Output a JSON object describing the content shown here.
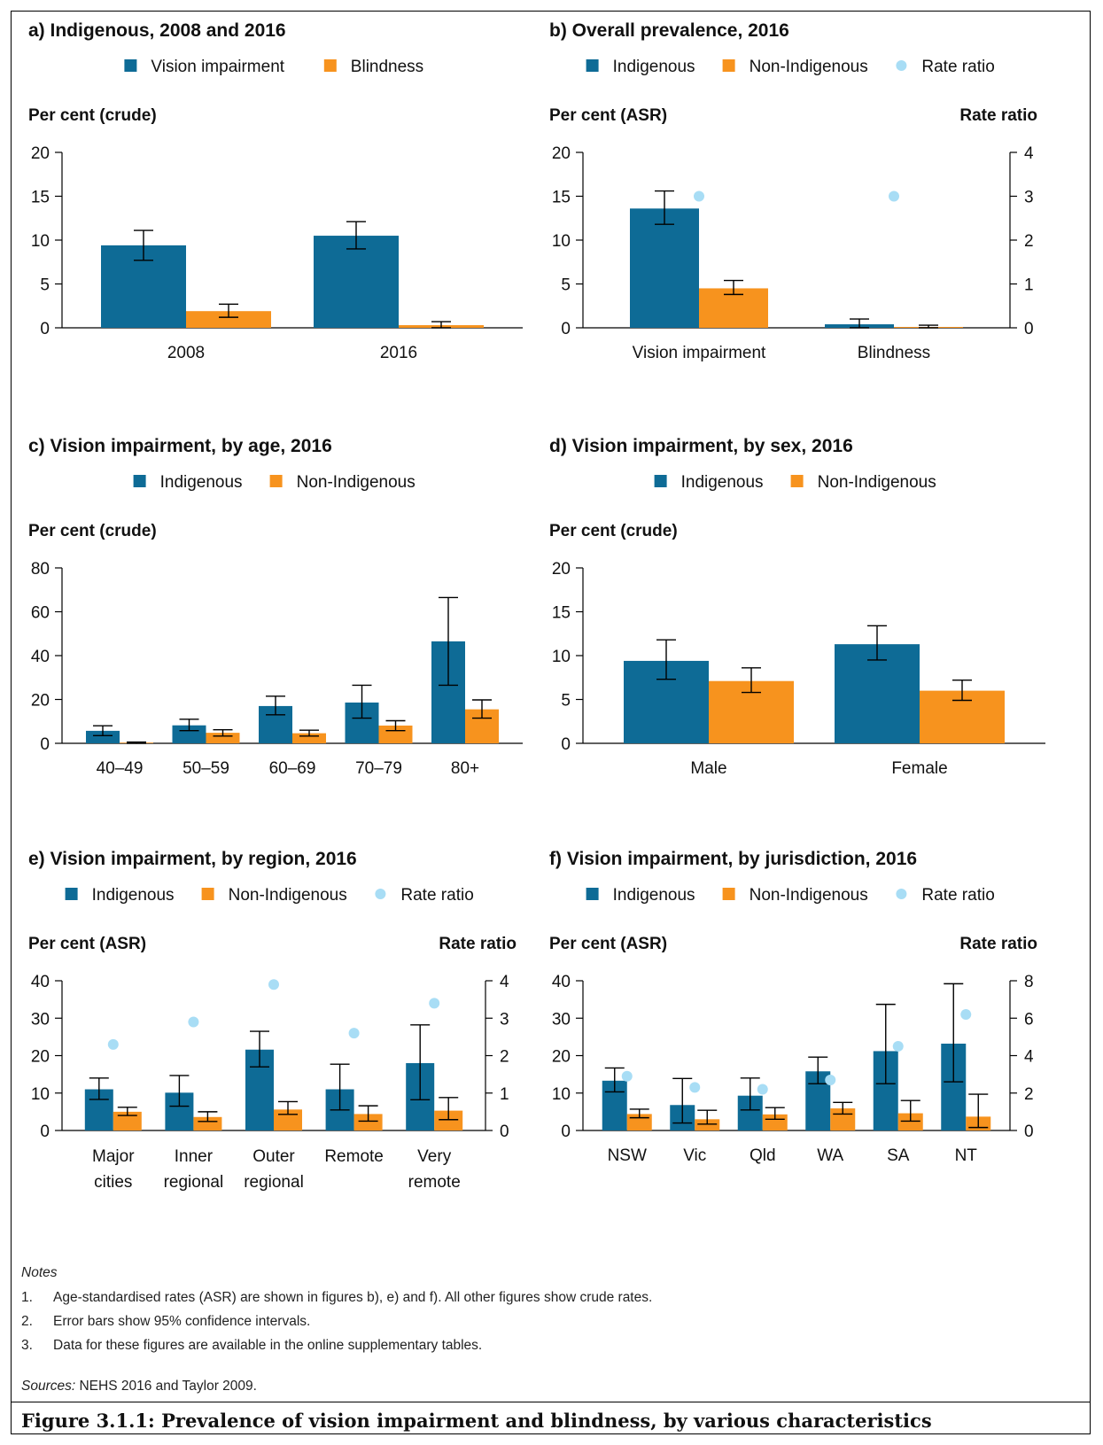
{
  "colors": {
    "indigenous": "#0e6b96",
    "orange": "#f7931e",
    "ratio": "#a8ddf5"
  },
  "chart_data": [
    {
      "id": "a",
      "type": "bar",
      "title": "a) Indigenous, 2008 and 2016",
      "ylabel": "Per cent (crude)",
      "categories": [
        "2008",
        "2016"
      ],
      "ylim": [
        0,
        20
      ],
      "yticks": [
        0,
        5,
        10,
        15,
        20
      ],
      "series": [
        {
          "name": "Vision impairment",
          "color": "#0e6b96",
          "values": [
            9.4,
            10.5
          ],
          "err_low": [
            7.7,
            9.0
          ],
          "err_high": [
            11.1,
            12.1
          ]
        },
        {
          "name": "Blindness",
          "color": "#f7931e",
          "values": [
            1.9,
            0.3
          ],
          "err_low": [
            1.2,
            0.0
          ],
          "err_high": [
            2.7,
            0.7
          ]
        }
      ]
    },
    {
      "id": "b",
      "type": "bar",
      "title": "b) Overall prevalence, 2016",
      "ylabel": "Per cent (ASR)",
      "y2label": "Rate ratio",
      "categories": [
        "Vision impairment",
        "Blindness"
      ],
      "ylim": [
        0,
        20
      ],
      "yticks": [
        0,
        5,
        10,
        15,
        20
      ],
      "y2lim": [
        0,
        4
      ],
      "y2ticks": [
        0,
        1,
        2,
        3,
        4
      ],
      "series": [
        {
          "name": "Indigenous",
          "color": "#0e6b96",
          "values": [
            13.6,
            0.4
          ],
          "err_low": [
            11.8,
            0.0
          ],
          "err_high": [
            15.6,
            1.0
          ]
        },
        {
          "name": "Non-Indigenous",
          "color": "#f7931e",
          "values": [
            4.5,
            0.1
          ],
          "err_low": [
            3.8,
            0.0
          ],
          "err_high": [
            5.4,
            0.3
          ]
        }
      ],
      "rate_ratio": {
        "name": "Rate ratio",
        "color": "#a8ddf5",
        "values": [
          3.0,
          3.0
        ]
      }
    },
    {
      "id": "c",
      "type": "bar",
      "title": "c) Vision impairment, by age, 2016",
      "ylabel": "Per cent (crude)",
      "categories": [
        "40–49",
        "50–59",
        "60–69",
        "70–79",
        "80+"
      ],
      "ylim": [
        0,
        80
      ],
      "yticks": [
        0,
        20,
        40,
        60,
        80
      ],
      "series": [
        {
          "name": "Indigenous",
          "color": "#0e6b96",
          "values": [
            5.7,
            8.2,
            17.0,
            18.6,
            46.5
          ],
          "err_low": [
            3.5,
            5.8,
            13.0,
            11.5,
            26.5
          ],
          "err_high": [
            8.0,
            11.0,
            21.5,
            26.5,
            66.5
          ]
        },
        {
          "name": "Non-Indigenous",
          "color": "#f7931e",
          "values": [
            0.3,
            4.8,
            4.6,
            8.1,
            15.5
          ],
          "err_low": [
            0.0,
            3.3,
            3.3,
            5.8,
            11.5
          ],
          "err_high": [
            0.6,
            6.2,
            6.0,
            10.3,
            19.8
          ]
        }
      ]
    },
    {
      "id": "d",
      "type": "bar",
      "title": "d) Vision impairment, by sex, 2016",
      "ylabel": "Per cent (crude)",
      "categories": [
        "Male",
        "Female"
      ],
      "ylim": [
        0,
        20
      ],
      "yticks": [
        0,
        5,
        10,
        15,
        20
      ],
      "series": [
        {
          "name": "Indigenous",
          "color": "#0e6b96",
          "values": [
            9.4,
            11.3
          ],
          "err_low": [
            7.3,
            9.5
          ],
          "err_high": [
            11.8,
            13.4
          ]
        },
        {
          "name": "Non-Indigenous",
          "color": "#f7931e",
          "values": [
            7.1,
            6.0
          ],
          "err_low": [
            5.8,
            4.9
          ],
          "err_high": [
            8.6,
            7.2
          ]
        }
      ]
    },
    {
      "id": "e",
      "type": "bar",
      "title": "e) Vision impairment, by region, 2016",
      "ylabel": "Per cent (ASR)",
      "y2label": "Rate ratio",
      "categories": [
        "Major cities",
        "Inner regional",
        "Outer regional",
        "Remote",
        "Very remote"
      ],
      "category_lines": [
        [
          "Major",
          "cities"
        ],
        [
          "Inner",
          "regional"
        ],
        [
          "Outer",
          "regional"
        ],
        [
          "Remote",
          ""
        ],
        [
          "Very",
          "remote"
        ]
      ],
      "ylim": [
        0,
        40
      ],
      "yticks": [
        0,
        10,
        20,
        30,
        40
      ],
      "y2lim": [
        0,
        4
      ],
      "y2ticks": [
        0,
        1,
        2,
        3,
        4
      ],
      "series": [
        {
          "name": "Indigenous",
          "color": "#0e6b96",
          "values": [
            11.0,
            10.1,
            21.6,
            11.0,
            18.0
          ],
          "err_low": [
            8.3,
            6.5,
            17.0,
            5.5,
            8.2
          ],
          "err_high": [
            14.0,
            14.7,
            26.5,
            17.7,
            28.2
          ]
        },
        {
          "name": "Non-Indigenous",
          "color": "#f7931e",
          "values": [
            5.0,
            3.6,
            5.6,
            4.4,
            5.3
          ],
          "err_low": [
            4.0,
            2.4,
            4.3,
            2.5,
            2.9
          ],
          "err_high": [
            6.2,
            5.0,
            7.7,
            6.6,
            8.8
          ]
        }
      ],
      "rate_ratio": {
        "name": "Rate ratio",
        "color": "#a8ddf5",
        "values": [
          2.3,
          2.9,
          3.9,
          2.6,
          3.4
        ]
      }
    },
    {
      "id": "f",
      "type": "bar",
      "title": "f) Vision impairment, by jurisdiction, 2016",
      "ylabel": "Per cent (ASR)",
      "y2label": "Rate ratio",
      "categories": [
        "NSW",
        "Vic",
        "Qld",
        "WA",
        "SA",
        "NT"
      ],
      "ylim": [
        0,
        40
      ],
      "yticks": [
        0,
        10,
        20,
        30,
        40
      ],
      "y2lim": [
        0,
        8
      ],
      "y2ticks": [
        0,
        2,
        4,
        6,
        8
      ],
      "series": [
        {
          "name": "Indigenous",
          "color": "#0e6b96",
          "values": [
            13.3,
            6.8,
            9.3,
            15.8,
            21.2,
            23.2
          ],
          "err_low": [
            10.3,
            2.0,
            5.5,
            12.5,
            12.5,
            13.0
          ],
          "err_high": [
            16.7,
            13.9,
            14.0,
            19.6,
            33.7,
            39.2
          ]
        },
        {
          "name": "Non-Indigenous",
          "color": "#f7931e",
          "values": [
            4.4,
            3.0,
            4.3,
            5.9,
            4.6,
            3.7
          ],
          "err_low": [
            3.4,
            1.7,
            3.0,
            4.4,
            2.5,
            0.8
          ],
          "err_high": [
            5.7,
            5.4,
            6.1,
            7.5,
            8.0,
            9.7
          ]
        }
      ],
      "rate_ratio": {
        "name": "Rate ratio",
        "color": "#a8ddf5",
        "values": [
          2.9,
          2.3,
          2.2,
          2.7,
          4.5,
          6.2
        ]
      }
    }
  ],
  "notes": {
    "title": "Notes",
    "items": [
      {
        "num": "1.",
        "text": "Age-standardised rates (ASR) are shown in figures b), e) and f). All other figures show crude rates."
      },
      {
        "num": "2.",
        "text": "Error bars show 95% confidence intervals."
      },
      {
        "num": "3.",
        "text": "Data for these figures are available in the online supplementary tables."
      }
    ]
  },
  "sources": {
    "label": "Sources:",
    "text": " NEHS 2016 and Taylor 2009."
  },
  "caption": "Figure 3.1.1: Prevalence of vision impairment and blindness, by various characteristics"
}
